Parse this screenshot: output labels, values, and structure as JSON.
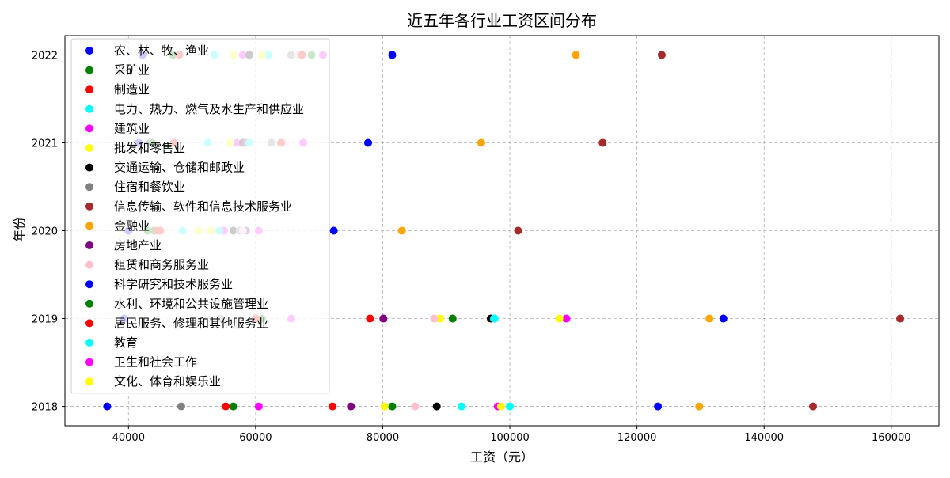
{
  "chart_data": {
    "type": "scatter",
    "title": "近五年各行业工资区间分布",
    "xlabel": "工资（元）",
    "ylabel": "年份",
    "xlim": [
      30000,
      167500
    ],
    "ylim": [
      2017.78,
      2022.22
    ],
    "xticks": [
      40000,
      60000,
      80000,
      100000,
      120000,
      140000,
      160000
    ],
    "xtick_labels": [
      "40000",
      "60000",
      "80000",
      "100000",
      "120000",
      "140000",
      "160000"
    ],
    "yticks": [
      2018,
      2019,
      2020,
      2021,
      2022
    ],
    "ytick_labels": [
      "2018",
      "2019",
      "2020",
      "2021",
      "2022"
    ],
    "grid": true,
    "legend_position": "upper-left",
    "series": [
      {
        "name": "农、林、牧、渔业",
        "color": "#0000ff",
        "points": [
          [
            36650,
            2018
          ],
          [
            39300,
            2019
          ],
          [
            40000,
            2020
          ],
          [
            41600,
            2021
          ],
          [
            42200,
            2022
          ]
        ]
      },
      {
        "name": "采矿业",
        "color": "#008000",
        "points": [
          [
            56500,
            2018
          ],
          [
            61000,
            2019
          ],
          [
            44000,
            2020
          ],
          [
            43500,
            2021
          ],
          [
            47000,
            2022
          ]
        ]
      },
      {
        "name": "制造业",
        "color": "#ff0000",
        "points": [
          [
            55300,
            2018
          ],
          [
            78000,
            2019
          ],
          [
            44500,
            2020
          ],
          [
            47200,
            2021
          ],
          [
            48000,
            2022
          ]
        ]
      },
      {
        "name": "电力、热力、燃气及水生产和供应业",
        "color": "#00ffff",
        "points": [
          [
            92400,
            2018
          ],
          [
            97600,
            2019
          ],
          [
            48500,
            2020
          ],
          [
            52500,
            2021
          ],
          [
            53500,
            2022
          ]
        ]
      },
      {
        "name": "建筑业",
        "color": "#ff00ff",
        "points": [
          [
            60500,
            2018
          ],
          [
            65600,
            2019
          ],
          [
            55000,
            2020
          ],
          [
            57000,
            2021
          ],
          [
            58000,
            2022
          ]
        ]
      },
      {
        "name": "批发和零售业",
        "color": "#ffff00",
        "points": [
          [
            80300,
            2018
          ],
          [
            89000,
            2019
          ],
          [
            51000,
            2020
          ],
          [
            56000,
            2021
          ],
          [
            56500,
            2022
          ]
        ]
      },
      {
        "name": "交通运输、仓储和邮政业",
        "color": "#000000",
        "points": [
          [
            88500,
            2018
          ],
          [
            97000,
            2019
          ],
          [
            56500,
            2020
          ],
          [
            58000,
            2021
          ],
          [
            59000,
            2022
          ]
        ]
      },
      {
        "name": "住宿和餐饮业",
        "color": "#808080",
        "points": [
          [
            48300,
            2018
          ],
          [
            54500,
            2019
          ],
          [
            57500,
            2020
          ],
          [
            62500,
            2021
          ],
          [
            65600,
            2022
          ]
        ]
      },
      {
        "name": "信息传输、软件和信息技术服务业",
        "color": "#a52a2a",
        "points": [
          [
            147700,
            2018
          ],
          [
            161400,
            2019
          ],
          [
            101300,
            2020
          ],
          [
            114600,
            2021
          ],
          [
            123900,
            2022
          ]
        ]
      },
      {
        "name": "金融业",
        "color": "#ffa500",
        "points": [
          [
            129800,
            2018
          ],
          [
            131400,
            2019
          ],
          [
            83000,
            2020
          ],
          [
            95500,
            2021
          ],
          [
            110400,
            2022
          ]
        ]
      },
      {
        "name": "房地产业",
        "color": "#800080",
        "points": [
          [
            75000,
            2018
          ],
          [
            80100,
            2019
          ],
          [
            58500,
            2020
          ],
          [
            58500,
            2021
          ],
          [
            61000,
            2022
          ]
        ]
      },
      {
        "name": "租赁和商务服务业",
        "color": "#ffc0cb",
        "points": [
          [
            85100,
            2018
          ],
          [
            88100,
            2019
          ],
          [
            58000,
            2020
          ],
          [
            64500,
            2021
          ],
          [
            66700,
            2022
          ]
        ]
      },
      {
        "name": "科学研究和技术服务业",
        "color": "#0000ff",
        "points": [
          [
            123300,
            2018
          ],
          [
            133600,
            2019
          ],
          [
            72300,
            2020
          ],
          [
            77700,
            2021
          ],
          [
            81500,
            2022
          ]
        ]
      },
      {
        "name": "水利、环境和公共设施管理业",
        "color": "#008000",
        "points": [
          [
            81500,
            2018
          ],
          [
            91000,
            2019
          ],
          [
            43000,
            2020
          ],
          [
            43700,
            2021
          ],
          [
            68800,
            2022
          ]
        ]
      },
      {
        "name": "居民服务、修理和其他服务业",
        "color": "#ff0000",
        "points": [
          [
            72100,
            2018
          ],
          [
            60000,
            2019
          ],
          [
            45000,
            2020
          ],
          [
            64000,
            2021
          ],
          [
            67300,
            2022
          ]
        ]
      },
      {
        "name": "教育",
        "color": "#00ffff",
        "points": [
          [
            100000,
            2018
          ],
          [
            97500,
            2019
          ],
          [
            54300,
            2020
          ],
          [
            59000,
            2021
          ],
          [
            62000,
            2022
          ]
        ]
      },
      {
        "name": "卫生和社会工作",
        "color": "#ff00ff",
        "points": [
          [
            98100,
            2018
          ],
          [
            108900,
            2019
          ],
          [
            60500,
            2020
          ],
          [
            67500,
            2021
          ],
          [
            70600,
            2022
          ]
        ]
      },
      {
        "name": "文化、体育和娱乐业",
        "color": "#ffff00",
        "points": [
          [
            98600,
            2018
          ],
          [
            107800,
            2019
          ],
          [
            53000,
            2020
          ],
          [
            56000,
            2021
          ],
          [
            61000,
            2022
          ]
        ]
      }
    ]
  }
}
